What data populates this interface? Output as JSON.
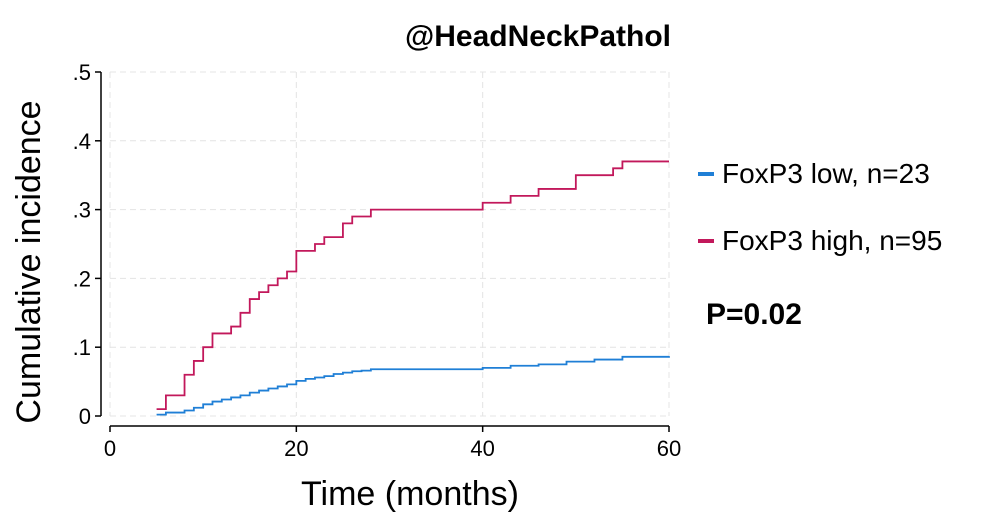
{
  "chart_data": {
    "type": "line",
    "step": true,
    "title": "@HeadNeckPathol",
    "xlabel": "Time (months)",
    "ylabel": "Cumulative incidence",
    "xlim": [
      0,
      60
    ],
    "ylim": [
      0,
      0.5
    ],
    "xticks": [
      0,
      20,
      40,
      60
    ],
    "xtick_labels": [
      "0",
      "20",
      "40",
      "60"
    ],
    "yticks": [
      0,
      0.1,
      0.2,
      0.3,
      0.4,
      0.5
    ],
    "ytick_labels": [
      "0",
      ".1",
      ".2",
      ".3",
      ".4",
      ".5"
    ],
    "grid": true,
    "legend_position": "right",
    "annotation": "P=0.02",
    "series": [
      {
        "name": "FoxP3 low, n=23",
        "color": "#1f7fd6",
        "x": [
          5,
          6,
          8,
          9,
          10,
          11,
          12,
          13,
          14,
          15,
          16,
          17,
          18,
          19,
          20,
          21,
          22,
          23,
          24,
          25,
          26,
          27,
          28,
          40,
          43,
          46,
          49,
          52,
          55,
          60
        ],
        "y": [
          0.002,
          0.005,
          0.008,
          0.012,
          0.017,
          0.021,
          0.024,
          0.027,
          0.03,
          0.034,
          0.037,
          0.04,
          0.043,
          0.046,
          0.051,
          0.054,
          0.056,
          0.058,
          0.061,
          0.063,
          0.065,
          0.066,
          0.068,
          0.07,
          0.073,
          0.075,
          0.079,
          0.082,
          0.086,
          0.087
        ]
      },
      {
        "name": "FoxP3 high, n=95",
        "color": "#c2185b",
        "x": [
          5,
          6,
          8,
          9,
          10,
          11,
          13,
          14,
          15,
          16,
          17,
          18,
          19,
          20,
          22,
          23,
          25,
          26,
          27,
          28,
          40,
          43,
          46,
          50,
          54,
          55,
          60
        ],
        "y": [
          0.01,
          0.03,
          0.06,
          0.08,
          0.1,
          0.12,
          0.13,
          0.15,
          0.17,
          0.18,
          0.19,
          0.2,
          0.21,
          0.24,
          0.25,
          0.26,
          0.28,
          0.29,
          0.29,
          0.3,
          0.31,
          0.32,
          0.33,
          0.35,
          0.36,
          0.37,
          0.37
        ]
      }
    ]
  }
}
